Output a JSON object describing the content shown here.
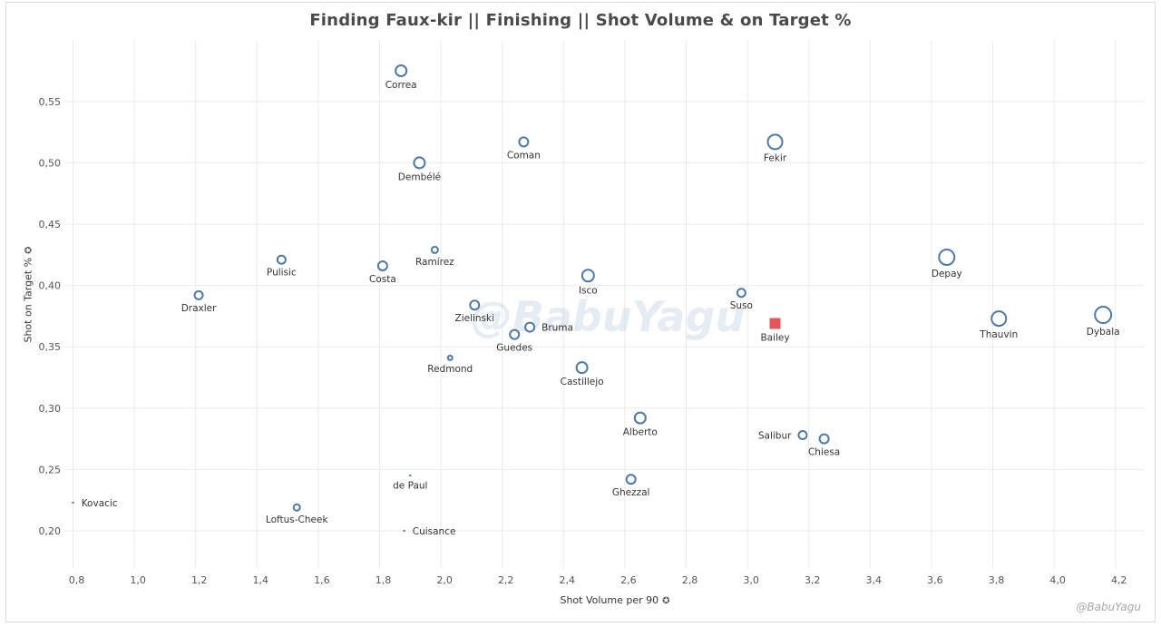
{
  "chart_data": {
    "type": "scatter",
    "title": "Finding Faux-kir  ||  Finishing  ||  Shot Volume & on Target %",
    "xlabel": "Shot Volume per 90",
    "ylabel": "Shot on Target %",
    "xlim": [
      0.78,
      4.3
    ],
    "ylim": [
      0.17,
      0.6
    ],
    "xticks": [
      "0,8",
      "1,0",
      "1,2",
      "1,4",
      "1,6",
      "1,8",
      "2,0",
      "2,2",
      "2,4",
      "2,6",
      "2,8",
      "3,0",
      "3,2",
      "3,4",
      "3,6",
      "3,8",
      "4,0",
      "4,2"
    ],
    "yticks": [
      "0,20",
      "0,25",
      "0,30",
      "0,35",
      "0,40",
      "0,45",
      "0,50",
      "0,55"
    ],
    "grid": true,
    "points": [
      {
        "name": "Correa",
        "x": 1.87,
        "y": 0.575,
        "size": 6,
        "label_pos": "below"
      },
      {
        "name": "Coman",
        "x": 2.27,
        "y": 0.517,
        "size": 5,
        "label_pos": "below"
      },
      {
        "name": "Fekir",
        "x": 3.09,
        "y": 0.517,
        "size": 8,
        "label_pos": "below"
      },
      {
        "name": "Dembélé",
        "x": 1.93,
        "y": 0.5,
        "size": 6,
        "label_pos": "below"
      },
      {
        "name": "Ramírez",
        "x": 1.98,
        "y": 0.429,
        "size": 3.5,
        "label_pos": "below"
      },
      {
        "name": "Pulisic",
        "x": 1.48,
        "y": 0.421,
        "size": 4.5,
        "label_pos": "below"
      },
      {
        "name": "Costa",
        "x": 1.81,
        "y": 0.416,
        "size": 5,
        "label_pos": "below"
      },
      {
        "name": "Depay",
        "x": 3.65,
        "y": 0.423,
        "size": 8.5,
        "label_pos": "below"
      },
      {
        "name": "Isco",
        "x": 2.48,
        "y": 0.408,
        "size": 6.5,
        "label_pos": "below"
      },
      {
        "name": "Suso",
        "x": 2.98,
        "y": 0.394,
        "size": 4.5,
        "label_pos": "below"
      },
      {
        "name": "Draxler",
        "x": 1.21,
        "y": 0.392,
        "size": 4.5,
        "label_pos": "below"
      },
      {
        "name": "Zielinski",
        "x": 2.11,
        "y": 0.384,
        "size": 5,
        "label_pos": "below"
      },
      {
        "name": "Bruma",
        "x": 2.29,
        "y": 0.366,
        "size": 5,
        "label_pos": "right"
      },
      {
        "name": "Guedes",
        "x": 2.24,
        "y": 0.36,
        "size": 5,
        "label_pos": "below"
      },
      {
        "name": "Thauvin",
        "x": 3.82,
        "y": 0.373,
        "size": 8,
        "label_pos": "below"
      },
      {
        "name": "Dybala",
        "x": 4.16,
        "y": 0.376,
        "size": 9,
        "label_pos": "below"
      },
      {
        "name": "Bailey",
        "x": 3.09,
        "y": 0.369,
        "size": 6,
        "label_pos": "below",
        "highlight": true
      },
      {
        "name": "Redmond",
        "x": 2.03,
        "y": 0.341,
        "size": 2.5,
        "label_pos": "below"
      },
      {
        "name": "Castillejo",
        "x": 2.46,
        "y": 0.333,
        "size": 6,
        "label_pos": "below"
      },
      {
        "name": "Alberto",
        "x": 2.65,
        "y": 0.292,
        "size": 6,
        "label_pos": "below"
      },
      {
        "name": "Salibur",
        "x": 3.18,
        "y": 0.278,
        "size": 4.5,
        "label_pos": "left"
      },
      {
        "name": "Chiesa",
        "x": 3.25,
        "y": 0.275,
        "size": 5,
        "label_pos": "below"
      },
      {
        "name": "de Paul",
        "x": 1.9,
        "y": 0.245,
        "size": 1.2,
        "label_pos": "below"
      },
      {
        "name": "Ghezzal",
        "x": 2.62,
        "y": 0.242,
        "size": 5,
        "label_pos": "below"
      },
      {
        "name": "Kovacic",
        "x": 0.8,
        "y": 0.223,
        "size": 1.2,
        "label_pos": "right"
      },
      {
        "name": "Loftus-Cheek",
        "x": 1.53,
        "y": 0.219,
        "size": 3.5,
        "label_pos": "below"
      },
      {
        "name": "Cuisance",
        "x": 1.88,
        "y": 0.2,
        "size": 1.2,
        "label_pos": "right"
      }
    ],
    "colors": {
      "marker": "#4e79a7",
      "highlight": "#e15759",
      "grid": "#ebebeb"
    }
  },
  "watermark": "@BabuYagu",
  "credit": "@BabuYagu"
}
